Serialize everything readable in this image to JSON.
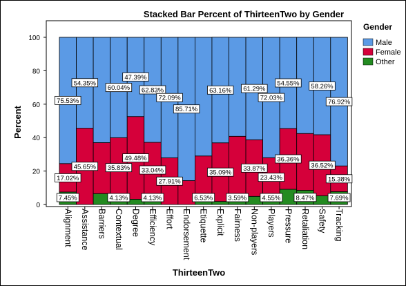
{
  "chart_data": {
    "type": "bar",
    "stacked": true,
    "title": "Stacked Bar Percent of ThirteenTwo by Gender",
    "xlabel": "ThirteenTwo",
    "ylabel": "Percent",
    "ylim": [
      0,
      100
    ],
    "yticks": [
      "0",
      "20",
      "40",
      "60",
      "80",
      "100"
    ],
    "categories": [
      "Alignment",
      "Assistance",
      "Barriers",
      "Contextual",
      "Degree",
      "Efficiency",
      "Effort",
      "Endorsement",
      "Etiquette",
      "Explicit",
      "Fairness",
      "Non-players",
      "Players",
      "Pressure",
      "Retaliation",
      "Safety",
      "Tracking"
    ],
    "series": [
      {
        "name": "Other",
        "color": "#238b21",
        "values": [
          7.45,
          0,
          6.5,
          4.13,
          3.13,
          4.13,
          0,
          0,
          6.53,
          1.8,
          3.59,
          4.84,
          4.55,
          9.09,
          8.47,
          5.22,
          7.69
        ],
        "labels": [
          "7.45%",
          "",
          "",
          "4.13%",
          "",
          "4.13%",
          "",
          "",
          "6.53%",
          "",
          "3.59%",
          "",
          "4.55%",
          "",
          "8.47%",
          "",
          "7.69%"
        ]
      },
      {
        "name": "Female",
        "color": "#d5003a",
        "values": [
          17.02,
          45.65,
          30.5,
          35.83,
          49.48,
          33.04,
          27.91,
          14.29,
          22.5,
          35.09,
          37.2,
          33.87,
          23.43,
          36.36,
          34.0,
          36.52,
          15.38
        ],
        "labels": [
          "17.02%",
          "45.65%",
          "",
          "35.83%",
          "49.48%",
          "33.04%",
          "27.91%",
          "",
          "",
          "35.09%",
          "",
          "33.87%",
          "23.43%",
          "36.36%",
          "",
          "36.52%",
          "15.38%"
        ]
      },
      {
        "name": "Male",
        "color": "#5b9ae5",
        "values": [
          75.53,
          54.35,
          63.0,
          60.04,
          47.39,
          62.83,
          72.09,
          85.71,
          70.97,
          63.16,
          59.21,
          61.29,
          72.03,
          54.55,
          57.53,
          58.26,
          76.92
        ],
        "labels": [
          "75.53%",
          "54.35%",
          "",
          "60.04%",
          "47.39%",
          "62.83%",
          "72.09%",
          "85.71%",
          "",
          "63.16%",
          "",
          "61.29%",
          "72.03%",
          "54.55%",
          "",
          "58.26%",
          "76.92%"
        ]
      }
    ],
    "legend": {
      "title": "Gender",
      "position": "right",
      "items": [
        {
          "name": "Male",
          "color": "#5b9ae5"
        },
        {
          "name": "Female",
          "color": "#d5003a"
        },
        {
          "name": "Other",
          "color": "#238b21"
        }
      ]
    },
    "grid": false
  }
}
